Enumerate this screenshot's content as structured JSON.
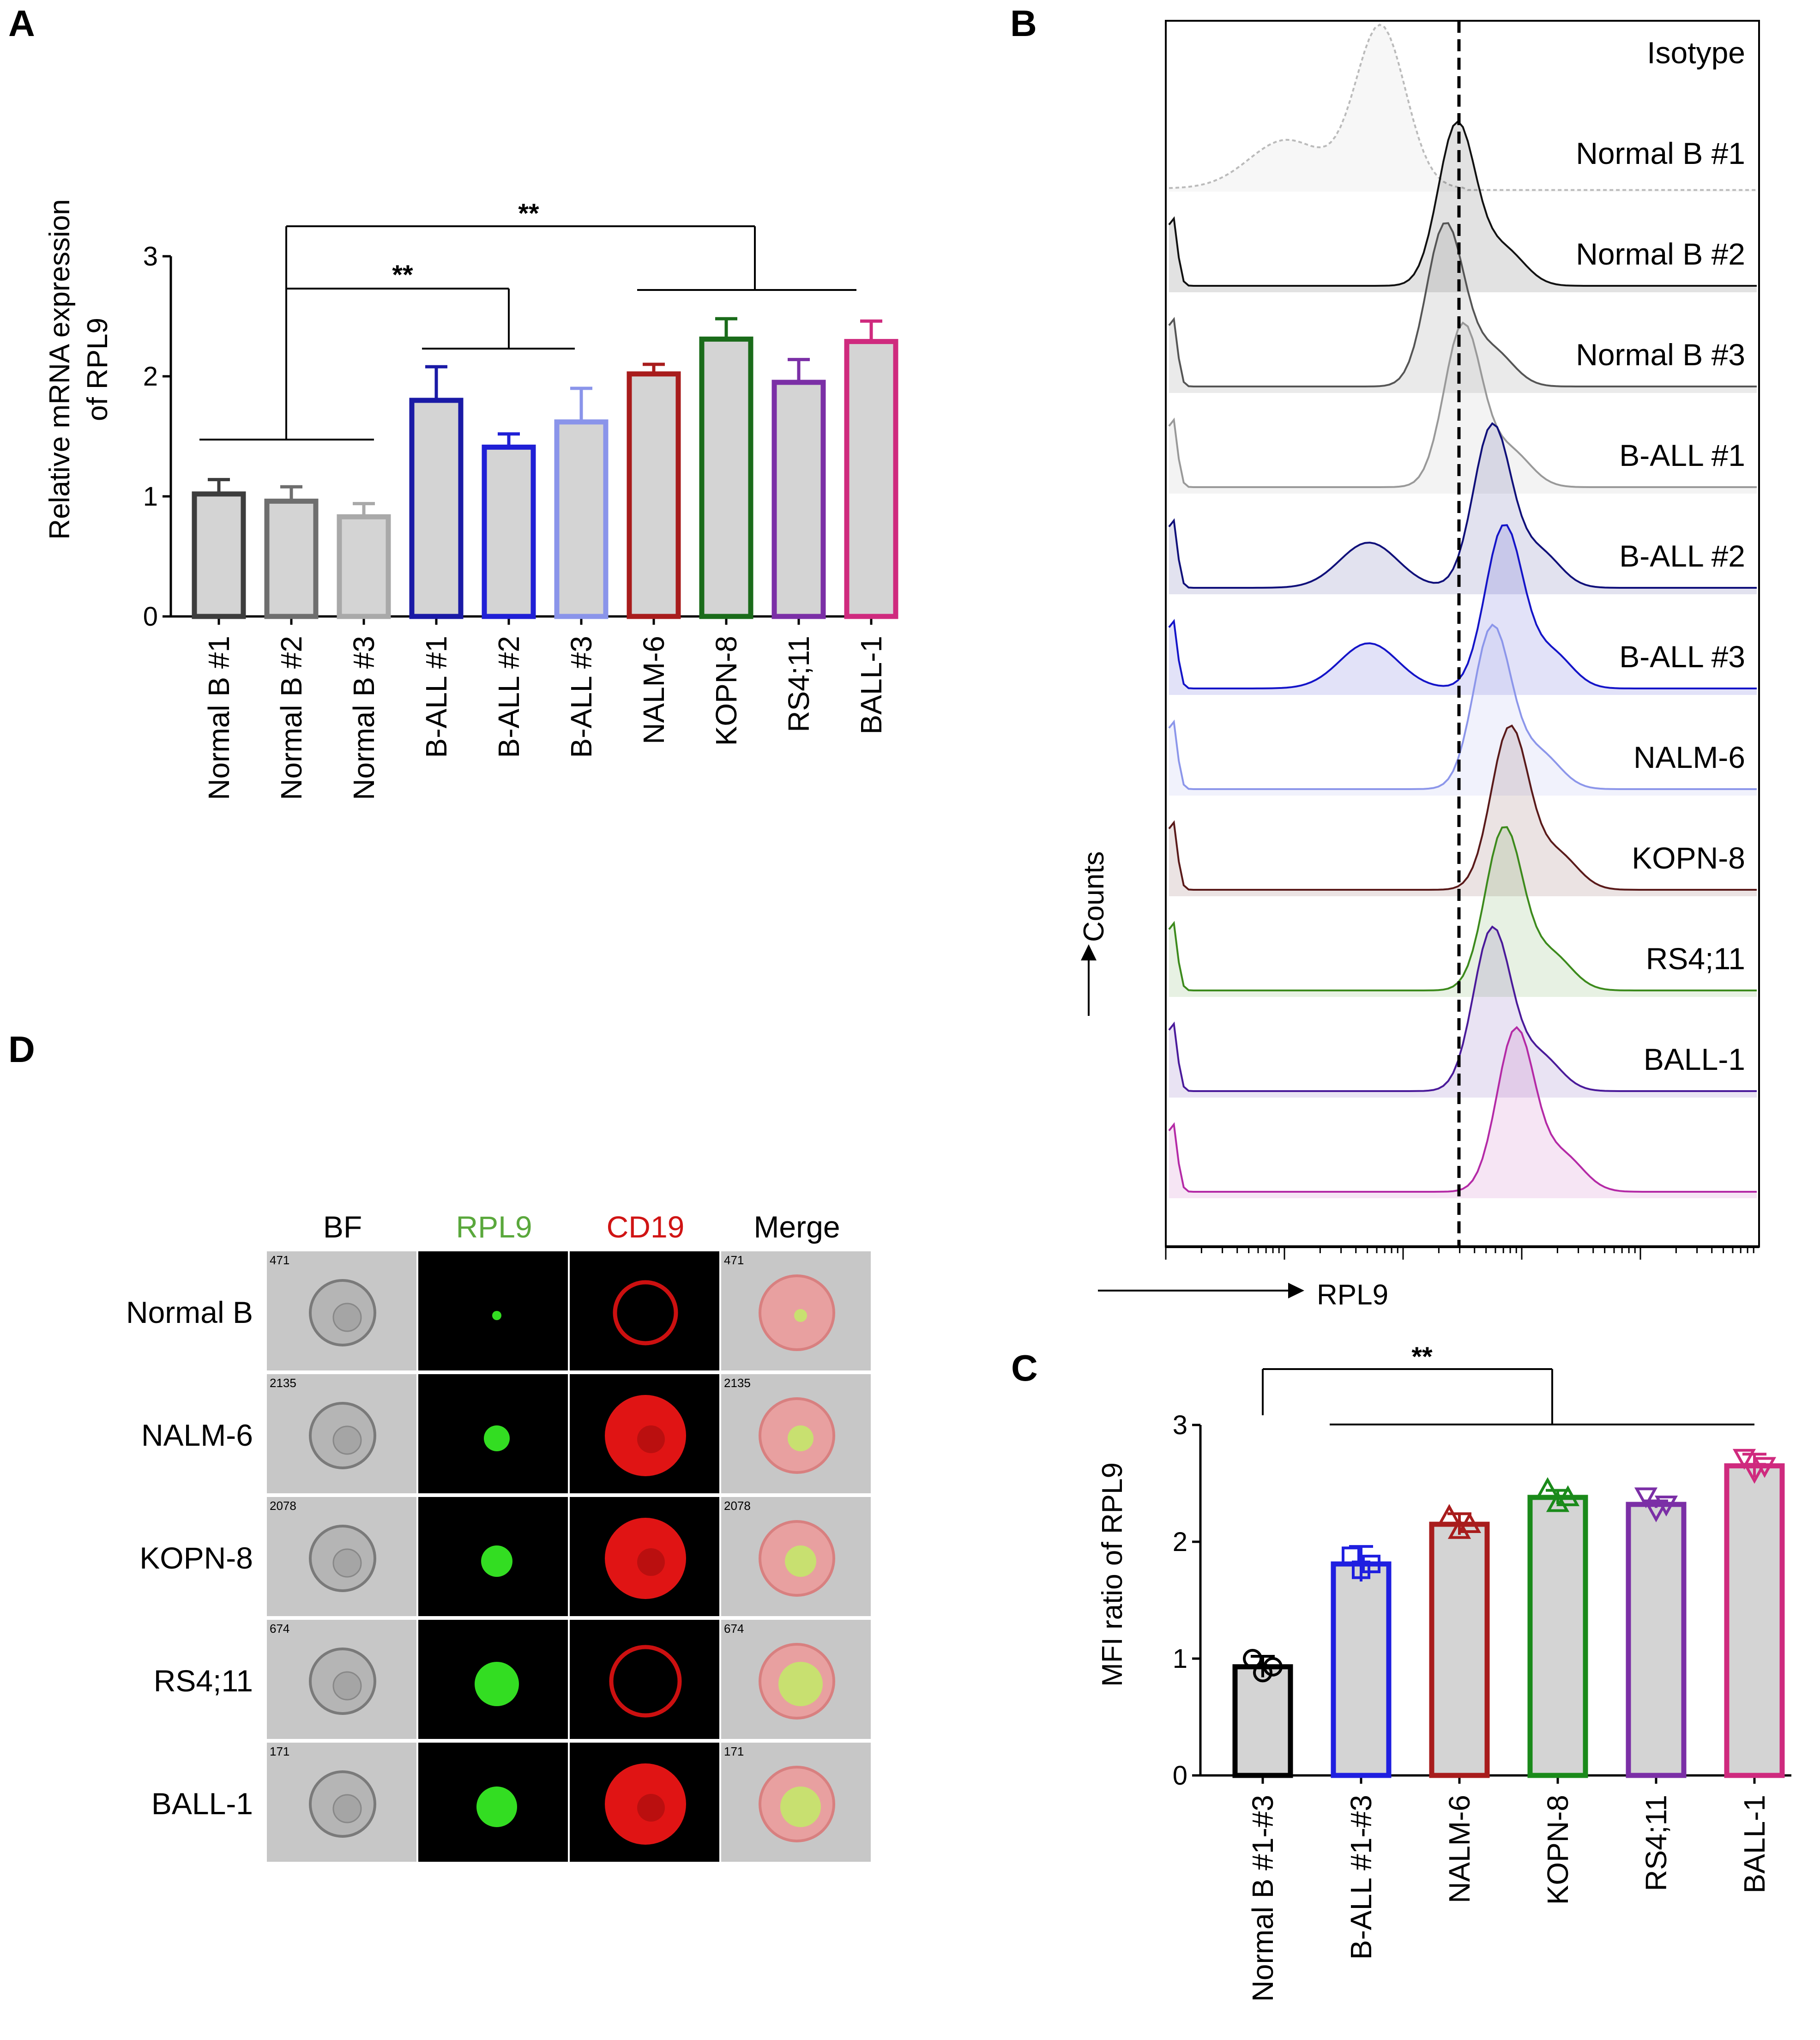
{
  "panels": {
    "a": "A",
    "b": "B",
    "c": "C",
    "d": "D"
  },
  "chart_data": [
    {
      "id": "A",
      "type": "bar",
      "ylabel": [
        "Relative mRNA expression",
        "of RPL9"
      ],
      "ylim": [
        0,
        3
      ],
      "yticks": [
        "0",
        "1",
        "2",
        "3"
      ],
      "categories": [
        "Normal B #1",
        "Normal B #2",
        "Normal B #3",
        "B-ALL #1",
        "B-ALL #2",
        "B-ALL #3",
        "NALM-6",
        "KOPN-8",
        "RS4;11",
        "BALL-1"
      ],
      "values": [
        1.02,
        0.96,
        0.83,
        1.8,
        1.41,
        1.62,
        2.02,
        2.31,
        1.95,
        2.29
      ],
      "errors": [
        0.12,
        0.12,
        0.11,
        0.28,
        0.11,
        0.28,
        0.08,
        0.17,
        0.19,
        0.17
      ],
      "colors": [
        "#3d3d3d",
        "#6e6e6e",
        "#a9a9a9",
        "#1a1aa6",
        "#1f1fd6",
        "#8a94ea",
        "#a81c1c",
        "#1a6b1a",
        "#7b2fa6",
        "#cf2a7e"
      ],
      "significance": [
        "**",
        "**"
      ]
    },
    {
      "id": "B",
      "type": "histogram",
      "xlabel": "RPL9",
      "ylabel": "Counts",
      "samples": [
        "Isotype",
        "Normal B #1",
        "Normal B #2",
        "Normal B #3",
        "B-ALL #1",
        "B-ALL #2",
        "B-ALL #3",
        "NALM-6",
        "KOPN-8",
        "RS4;11",
        "BALL-1"
      ],
      "peaks": [
        0.36,
        0.49,
        0.47,
        0.5,
        0.55,
        0.57,
        0.55,
        0.58,
        0.57,
        0.55,
        0.59
      ],
      "colors": [
        "#bbbbbb",
        "#111111",
        "#555555",
        "#999999",
        "#10107a",
        "#1414c8",
        "#8c96ea",
        "#5a1a1a",
        "#3c8a1c",
        "#4a1a9a",
        "#b42aa6"
      ]
    },
    {
      "id": "C",
      "type": "bar",
      "ylabel": "MFI ratio of RPL9",
      "ylim": [
        0,
        3
      ],
      "yticks": [
        "0",
        "1",
        "2",
        "3"
      ],
      "categories": [
        "Normal B #1-#3",
        "B-ALL #1-#3",
        "NALM-6",
        "KOPN-8",
        "RS4;11",
        "BALL-1"
      ],
      "values": [
        0.93,
        1.81,
        2.15,
        2.38,
        2.32,
        2.65
      ],
      "errors": [
        0.09,
        0.15,
        0.09,
        0.06,
        0.03,
        0.1
      ],
      "colors": [
        "#000000",
        "#1f1fe0",
        "#a81c1c",
        "#1a8a1a",
        "#7b2fa6",
        "#cf2a7e"
      ],
      "significance": "**"
    }
  ],
  "imaging": {
    "channels": [
      {
        "label": "BF",
        "color": "#000000"
      },
      {
        "label": "RPL9",
        "color": "#5aa83c"
      },
      {
        "label": "CD19",
        "color": "#d01414"
      },
      {
        "label": "Merge",
        "color": "#000000"
      }
    ],
    "rows": [
      {
        "label": "Normal B",
        "count": "471"
      },
      {
        "label": "NALM-6",
        "count": "2135"
      },
      {
        "label": "KOPN-8",
        "count": "2078"
      },
      {
        "label": "RS4;11",
        "count": "674"
      },
      {
        "label": "BALL-1",
        "count": "171"
      }
    ]
  }
}
